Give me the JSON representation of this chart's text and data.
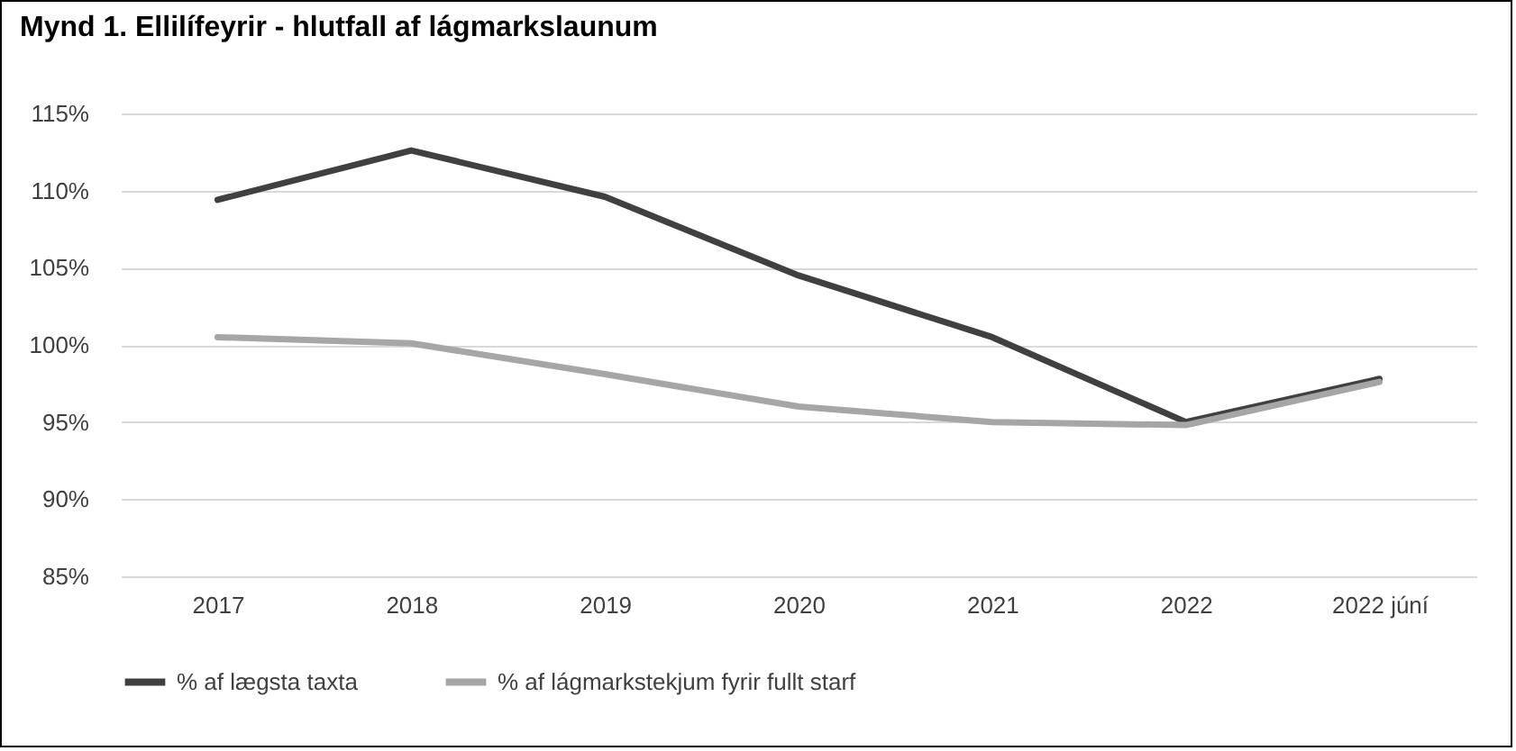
{
  "chart_data": {
    "type": "line",
    "title": "Mynd 1. Ellilífeyrir - hlutfall af lágmarkslaunum",
    "categories": [
      "2017",
      "2018",
      "2019",
      "2020",
      "2021",
      "2022",
      "2022 júní"
    ],
    "series": [
      {
        "name": "% af lægsta taxta",
        "color": "#404040",
        "values": [
          109.4,
          112.6,
          109.6,
          104.5,
          100.5,
          95.0,
          97.8
        ]
      },
      {
        "name": "% af lágmarkstekjum fyrir fullt starf",
        "color": "#a6a6a6",
        "values": [
          100.5,
          100.1,
          98.1,
          96.0,
          95.0,
          94.8,
          97.6
        ]
      }
    ],
    "ylim": [
      85,
      115
    ],
    "yticks": [
      {
        "value": 85,
        "label": "85%"
      },
      {
        "value": 90,
        "label": "90%"
      },
      {
        "value": 95,
        "label": "95%"
      },
      {
        "value": 100,
        "label": "100%"
      },
      {
        "value": 105,
        "label": "105%"
      },
      {
        "value": 110,
        "label": "110%"
      },
      {
        "value": 115,
        "label": "115%"
      }
    ],
    "grid": "y",
    "legend": "bottom",
    "marker": "none",
    "line_style": "solid"
  }
}
